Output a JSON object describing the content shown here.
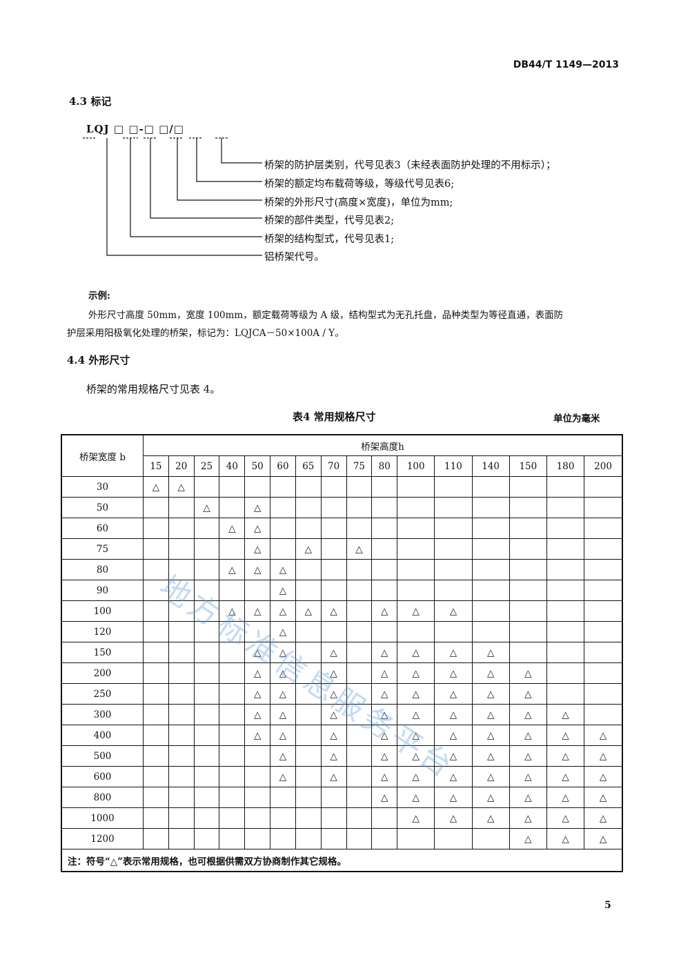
{
  "header": {
    "doc_number": "DB44/T 1149—2013"
  },
  "section_43": {
    "heading": "4.3  标记",
    "code": "LQJ □ □-□ □/□",
    "descriptions": [
      "桥架的防护层类别，代号见表3（未经表面防护处理的不用标示）；",
      "桥架的额定均布载荷等级，等级代号见表6;",
      "桥架的外形尺寸(高度×宽度)，单位为mm;",
      "桥架的部件类型，代号见表2;",
      "桥架的结构型式，代号见表1;",
      "铝桥架代号。"
    ],
    "example_label": "示例:",
    "example_line1": "外形尺寸高度 50mm，宽度 100mm，额定载荷等级为 A 级，结构型式为无孔托盘，品种类型为等径直通，表面防",
    "example_line2": "护层采用阳极氧化处理的桥架，标记为：LQJCA－50×100A / Y。"
  },
  "section_44": {
    "heading": "4.4  外形尺寸",
    "text": "桥架的常用规格尺寸见表 4。"
  },
  "table": {
    "caption": "表4  常用规格尺寸",
    "unit": "单位为毫米",
    "row_header": "桥架宽度 b",
    "col_group_header": "桥架高度h",
    "heights": [
      "15",
      "20",
      "25",
      "40",
      "50",
      "60",
      "65",
      "70",
      "75",
      "80",
      "100",
      "110",
      "140",
      "150",
      "180",
      "200"
    ],
    "mark_symbol": "△",
    "rows": [
      {
        "width": "30",
        "marked": [
          "15",
          "20"
        ]
      },
      {
        "width": "50",
        "marked": [
          "25",
          "50"
        ]
      },
      {
        "width": "60",
        "marked": [
          "40",
          "50"
        ]
      },
      {
        "width": "75",
        "marked": [
          "50",
          "65",
          "75"
        ]
      },
      {
        "width": "80",
        "marked": [
          "40",
          "50",
          "60"
        ]
      },
      {
        "width": "90",
        "marked": [
          "60"
        ]
      },
      {
        "width": "100",
        "marked": [
          "40",
          "50",
          "60",
          "65",
          "70",
          "80",
          "100",
          "110"
        ]
      },
      {
        "width": "120",
        "marked": [
          "60"
        ]
      },
      {
        "width": "150",
        "marked": [
          "50",
          "60",
          "70",
          "80",
          "100",
          "110",
          "140"
        ]
      },
      {
        "width": "200",
        "marked": [
          "50",
          "60",
          "70",
          "80",
          "100",
          "110",
          "140",
          "150"
        ]
      },
      {
        "width": "250",
        "marked": [
          "50",
          "60",
          "70",
          "80",
          "100",
          "110",
          "140",
          "150"
        ]
      },
      {
        "width": "300",
        "marked": [
          "50",
          "60",
          "70",
          "80",
          "100",
          "110",
          "140",
          "150",
          "180"
        ]
      },
      {
        "width": "400",
        "marked": [
          "50",
          "60",
          "70",
          "80",
          "100",
          "110",
          "140",
          "150",
          "180",
          "200"
        ]
      },
      {
        "width": "500",
        "marked": [
          "60",
          "70",
          "80",
          "100",
          "110",
          "140",
          "150",
          "180",
          "200"
        ]
      },
      {
        "width": "600",
        "marked": [
          "60",
          "70",
          "80",
          "100",
          "110",
          "140",
          "150",
          "180",
          "200"
        ]
      },
      {
        "width": "800",
        "marked": [
          "80",
          "100",
          "110",
          "140",
          "150",
          "180",
          "200"
        ]
      },
      {
        "width": "1000",
        "marked": [
          "100",
          "110",
          "140",
          "150",
          "180",
          "200"
        ]
      },
      {
        "width": "1200",
        "marked": [
          "150",
          "180",
          "200"
        ]
      }
    ],
    "note": "注：符号“△”表示常用规格，也可根据供需双方协商制作其它规格。"
  },
  "watermark": "地方标准信息服务平台",
  "page_number": "5"
}
